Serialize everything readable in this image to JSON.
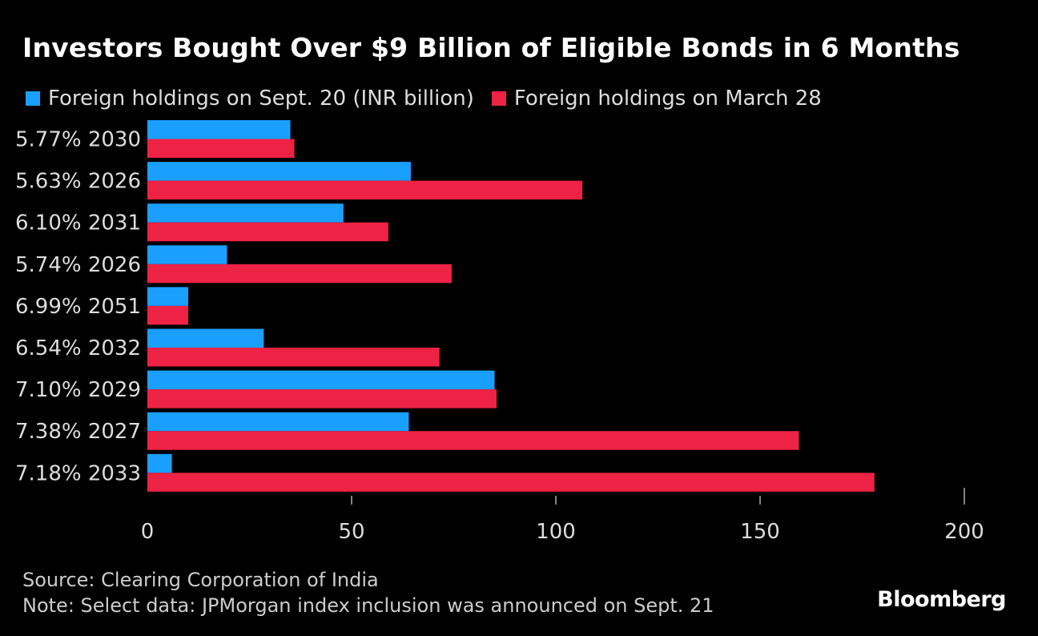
{
  "chart_data": {
    "type": "bar",
    "orientation": "horizontal",
    "title": "Investors Bought Over $9 Billion of Eligible Bonds in 6 Months",
    "categories": [
      "5.77% 2030",
      "5.63% 2026",
      "6.10% 2031",
      "5.74% 2026",
      "6.99% 2051",
      "6.54% 2032",
      "7.10% 2029",
      "7.38% 2027",
      "7.18% 2033"
    ],
    "series": [
      {
        "name": "Foreign holdings on Sept. 20 (INR billion)",
        "color": "#1a9fff",
        "values": [
          35,
          64.5,
          48,
          19.5,
          10,
          28.5,
          85,
          64,
          6
        ]
      },
      {
        "name": "Foreign holdings on March 28",
        "color": "#ee2244",
        "values": [
          36,
          106.5,
          59,
          74.5,
          10,
          71.5,
          85.5,
          159.5,
          178
        ]
      }
    ],
    "xlim": [
      0,
      200
    ],
    "xticks": [
      "0",
      "50",
      "100",
      "150",
      "200"
    ],
    "xlabel": "",
    "ylabel": "",
    "grid": false,
    "legend": "top-left"
  },
  "footer": {
    "source": "Source: Clearing Corporation of India",
    "note": "Note: Select data: JPMorgan index inclusion was announced on Sept. 21",
    "logo": "Bloomberg"
  }
}
